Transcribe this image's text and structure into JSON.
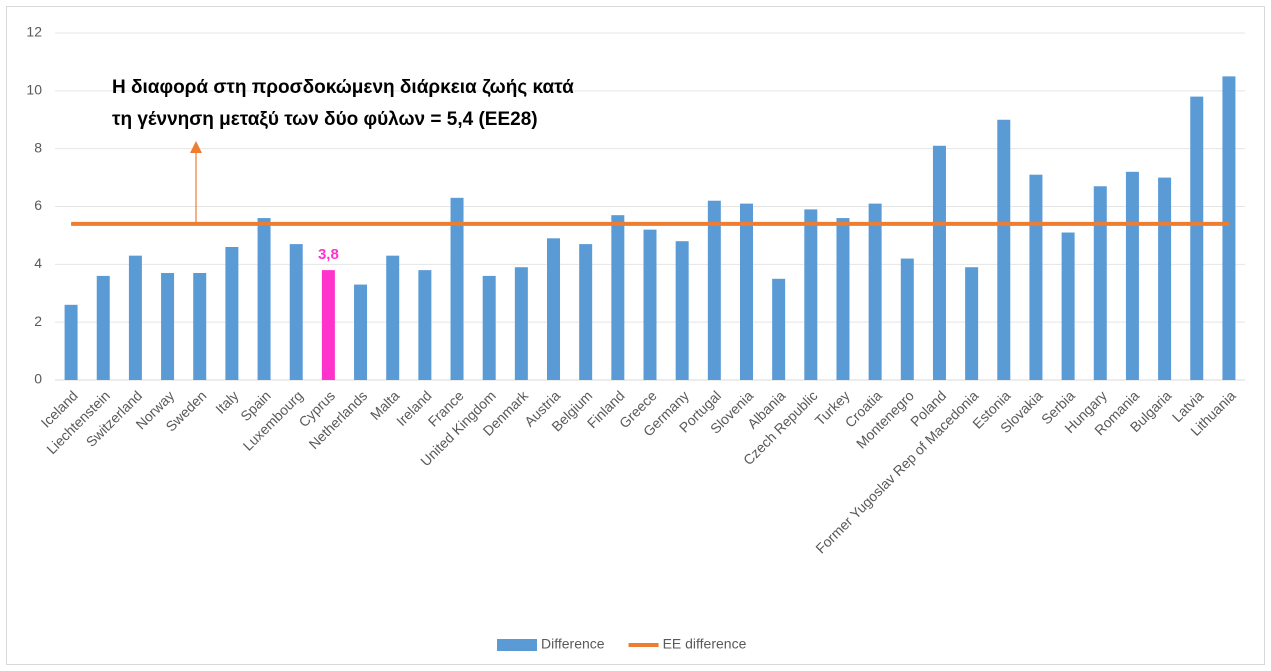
{
  "chart_data": {
    "type": "bar",
    "annotation": [
      "Η διαφορά στη προσδοκώμενη διάρκεια ζωής κατά",
      "τη γέννηση μεταξύ των δύο φύλων  = 5,4 (ΕΕ28)"
    ],
    "categories": [
      "Iceland",
      "Liechtenstein",
      "Switzerland",
      "Norway",
      "Sweden",
      "Italy",
      "Spain",
      "Luxembourg",
      "Cyprus",
      "Netherlands",
      "Malta",
      "Ireland",
      "France",
      "United Kingdom",
      "Denmark",
      "Austria",
      "Belgium",
      "Finland",
      "Greece",
      "Germany",
      "Portugal",
      "Slovenia",
      "Albania",
      "Czech Republic",
      "Turkey",
      "Croatia",
      "Montenegro",
      "Poland",
      "Former Yugoslav Rep of Macedonia",
      "Estonia",
      "Slovakia",
      "Serbia",
      "Hungary",
      "Romania",
      "Bulgaria",
      "Latvia",
      "Lithuania"
    ],
    "series": [
      {
        "name": "Difference",
        "type": "bar",
        "color": "#5b9bd5",
        "values": [
          2.6,
          3.6,
          4.3,
          3.7,
          3.7,
          4.6,
          5.6,
          4.7,
          3.8,
          3.3,
          4.3,
          3.8,
          6.3,
          3.6,
          3.9,
          4.9,
          4.7,
          5.7,
          5.2,
          4.8,
          6.2,
          6.1,
          3.5,
          5.9,
          5.6,
          6.1,
          4.2,
          8.1,
          3.9,
          9.0,
          7.1,
          5.1,
          6.7,
          7.2,
          7.0,
          9.8,
          10.5
        ],
        "point_colors": [
          "#5b9bd5",
          "#5b9bd5",
          "#5b9bd5",
          "#5b9bd5",
          "#5b9bd5",
          "#5b9bd5",
          "#5b9bd5",
          "#5b9bd5",
          "#ff33cc",
          "#5b9bd5",
          "#5b9bd5",
          "#5b9bd5",
          "#5b9bd5",
          "#5b9bd5",
          "#5b9bd5",
          "#5b9bd5",
          "#5b9bd5",
          "#5b9bd5",
          "#5b9bd5",
          "#5b9bd5",
          "#5b9bd5",
          "#5b9bd5",
          "#5b9bd5",
          "#5b9bd5",
          "#5b9bd5",
          "#5b9bd5",
          "#5b9bd5",
          "#5b9bd5",
          "#5b9bd5",
          "#5b9bd5",
          "#5b9bd5",
          "#5b9bd5",
          "#5b9bd5",
          "#5b9bd5",
          "#5b9bd5",
          "#5b9bd5",
          "#5b9bd5"
        ],
        "value_labels": [
          null,
          null,
          null,
          null,
          null,
          null,
          null,
          null,
          "3,8",
          null,
          null,
          null,
          null,
          null,
          null,
          null,
          null,
          null,
          null,
          null,
          null,
          null,
          null,
          null,
          null,
          null,
          null,
          null,
          null,
          null,
          null,
          null,
          null,
          null,
          null,
          null,
          null
        ]
      },
      {
        "name": "EE difference",
        "type": "line",
        "color": "#ed7d31",
        "values": [
          5.4,
          5.4,
          5.4,
          5.4,
          5.4,
          5.4,
          5.4,
          5.4,
          5.4,
          5.4,
          5.4,
          5.4,
          5.4,
          5.4,
          5.4,
          5.4,
          5.4,
          5.4,
          5.4,
          5.4,
          5.4,
          5.4,
          5.4,
          5.4,
          5.4,
          5.4,
          5.4,
          5.4,
          5.4,
          5.4,
          5.4,
          5.4,
          5.4,
          5.4,
          5.4,
          5.4,
          5.4
        ]
      }
    ],
    "ylim": [
      0,
      12
    ],
    "yticks": [
      0,
      2,
      4,
      6,
      8,
      10,
      12
    ],
    "grid": true,
    "legend": "bottom"
  }
}
